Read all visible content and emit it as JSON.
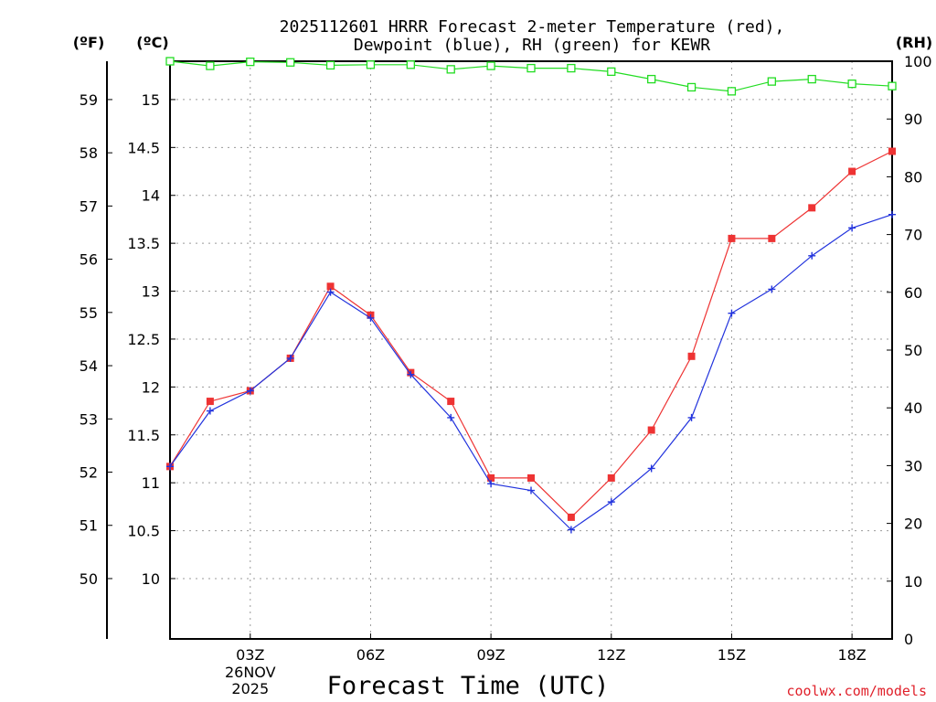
{
  "chart_data": {
    "type": "line",
    "title": [
      "2025112601 HRRR Forecast 2-meter Temperature (red),",
      "Dewpoint (blue), RH (green) for KEWR"
    ],
    "xlabel": "Forecast Time (UTC)",
    "credit": "coolwx.com/models",
    "unit_labels": {
      "fahrenheit": "(ºF)",
      "celsius": "(ºC)",
      "rh": "(RH)"
    },
    "x": [
      1,
      2,
      3,
      4,
      5,
      6,
      7,
      8,
      9,
      10,
      11,
      12,
      13,
      14,
      15,
      16,
      17,
      18,
      19
    ],
    "xlim": [
      1,
      19
    ],
    "x_ticks": [
      {
        "hour": 3,
        "label": "03Z",
        "sub": [
          "26NOV",
          "2025"
        ]
      },
      {
        "hour": 6,
        "label": "06Z"
      },
      {
        "hour": 9,
        "label": "09Z"
      },
      {
        "hour": 12,
        "label": "12Z"
      },
      {
        "hour": 15,
        "label": "15Z"
      },
      {
        "hour": 18,
        "label": "18Z"
      }
    ],
    "celsius_axis": {
      "ylim": [
        9.37,
        15.4
      ],
      "ticks": [
        10,
        10.5,
        11,
        11.5,
        12,
        12.5,
        13,
        13.5,
        14,
        14.5,
        15
      ],
      "tick_labels": [
        "10",
        "10.5",
        "11",
        "11.5",
        "12",
        "12.5",
        "13",
        "13.5",
        "14",
        "14.5",
        "15"
      ]
    },
    "fahrenheit_axis": {
      "ticks": [
        50,
        51,
        52,
        53,
        54,
        55,
        56,
        57,
        58,
        59
      ],
      "tick_labels": [
        "50",
        "51",
        "52",
        "53",
        "54",
        "55",
        "56",
        "57",
        "58",
        "59"
      ]
    },
    "rh_axis": {
      "ylim": [
        0,
        100
      ],
      "ticks": [
        0,
        10,
        20,
        30,
        40,
        50,
        60,
        70,
        80,
        90,
        100
      ],
      "tick_labels": [
        "0",
        "10",
        "20",
        "30",
        "40",
        "50",
        "60",
        "70",
        "80",
        "90",
        "100"
      ]
    },
    "series": [
      {
        "name": "Temperature",
        "axis": "celsius",
        "color": "#ee3333",
        "marker": "filled-square",
        "values": [
          11.17,
          11.85,
          11.96,
          12.3,
          13.05,
          12.75,
          12.15,
          11.85,
          11.05,
          11.05,
          10.64,
          11.05,
          11.55,
          12.32,
          13.55,
          13.55,
          13.87,
          14.25,
          14.46
        ]
      },
      {
        "name": "Dewpoint",
        "axis": "celsius",
        "color": "#2233dd",
        "marker": "plus",
        "values": [
          11.17,
          11.75,
          11.96,
          12.3,
          12.99,
          12.72,
          12.13,
          11.68,
          10.99,
          10.92,
          10.51,
          10.8,
          11.15,
          11.68,
          12.77,
          13.02,
          13.37,
          13.66,
          13.8
        ]
      },
      {
        "name": "RH",
        "axis": "rh",
        "color": "#22dd22",
        "marker": "open-square",
        "values": [
          100,
          99.2,
          99.9,
          99.8,
          99.3,
          99.4,
          99.4,
          98.6,
          99.2,
          98.8,
          98.8,
          98.2,
          96.9,
          95.5,
          94.8,
          96.5,
          96.9,
          96.1,
          95.7
        ]
      }
    ]
  }
}
